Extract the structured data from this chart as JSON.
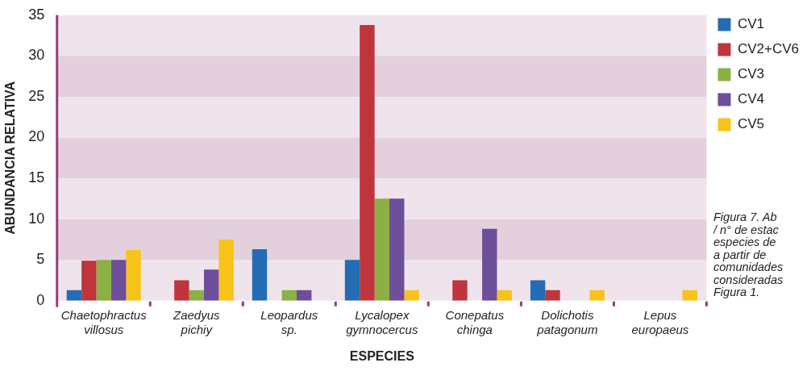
{
  "chart_data": {
    "type": "bar",
    "xlabel": "ESPECIES",
    "ylabel": "ABUNDANCIA RELATIVA",
    "categories": [
      "Chaetophractus villosus",
      "Zaedyus pichiy",
      "Leopardus sp.",
      "Lycalopex gymnocercus",
      "Conepatus chinga",
      "Dolichotis patagonum",
      "Lepus europaeus"
    ],
    "series": [
      {
        "name": "CV1",
        "color": "#246db5",
        "values": [
          1.3,
          0,
          6.3,
          5,
          0,
          2.5,
          0
        ]
      },
      {
        "name": "CV2+CV6",
        "color": "#c0343c",
        "values": [
          4.9,
          2.5,
          0,
          33.8,
          2.5,
          1.3,
          0
        ]
      },
      {
        "name": "CV3",
        "color": "#8bb043",
        "values": [
          5,
          1.3,
          1.3,
          12.5,
          0,
          0,
          0
        ]
      },
      {
        "name": "CV4",
        "color": "#6d4e9b",
        "values": [
          5,
          3.8,
          1.3,
          12.5,
          8.8,
          0,
          0
        ]
      },
      {
        "name": "CV5",
        "color": "#f8c318",
        "values": [
          6.2,
          7.5,
          0,
          1.3,
          1.3,
          1.3,
          1.3
        ]
      }
    ],
    "ylim": [
      0,
      35
    ],
    "yticks": [
      0,
      5,
      10,
      15,
      20,
      25,
      30,
      35
    ],
    "legend": "top right",
    "annotations": [
      "Figura 7. Ab\n/ n° de estac\nespecies de \na partir de\ncomunidades\nconsideradas\nFigura 1."
    ]
  }
}
